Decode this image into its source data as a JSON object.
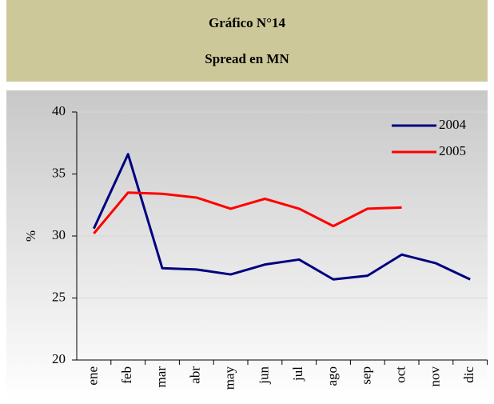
{
  "chart_data": {
    "type": "line",
    "title": "Gráfico N°14",
    "subtitle": "Spread en MN",
    "ylabel": "%",
    "categories": [
      "ene",
      "feb",
      "mar",
      "abr",
      "may",
      "jun",
      "jul",
      "ago",
      "sep",
      "oct",
      "nov",
      "dic"
    ],
    "series": [
      {
        "name": "2004",
        "color": "#000080",
        "values": [
          30.6,
          36.6,
          27.4,
          27.3,
          26.9,
          27.7,
          28.1,
          26.5,
          26.8,
          28.5,
          27.8,
          26.5
        ]
      },
      {
        "name": "2005",
        "color": "#ff0000",
        "values": [
          30.2,
          33.5,
          33.4,
          33.1,
          32.2,
          33.0,
          32.2,
          30.8,
          32.2,
          32.3,
          null,
          null
        ]
      }
    ],
    "ylim": [
      20,
      40
    ],
    "yticks": [
      20,
      25,
      30,
      35,
      40
    ],
    "grid": true,
    "legend": "upper right"
  }
}
